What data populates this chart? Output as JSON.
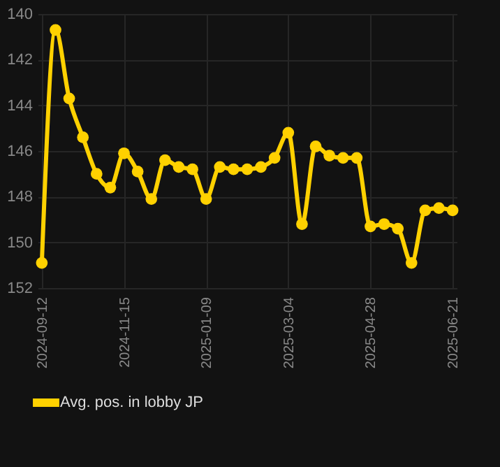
{
  "chart_data": {
    "type": "line",
    "categories": [
      "2024-09-12",
      null,
      null,
      null,
      null,
      null,
      "2024-11-15",
      null,
      null,
      null,
      null,
      null,
      "2025-01-09",
      null,
      null,
      null,
      null,
      null,
      "2025-03-04",
      null,
      null,
      null,
      null,
      null,
      "2025-04-28",
      null,
      null,
      null,
      null,
      null,
      "2025-06-21"
    ],
    "series": [
      {
        "name": "Avg. pos. in lobby JP",
        "color": "#ffd100",
        "values": [
          150.9,
          140.7,
          143.7,
          145.4,
          147.0,
          147.6,
          146.1,
          146.9,
          148.1,
          146.4,
          146.7,
          146.8,
          148.1,
          146.7,
          146.8,
          146.8,
          146.7,
          146.3,
          145.2,
          149.2,
          145.8,
          146.2,
          146.3,
          146.3,
          149.3,
          149.2,
          149.4,
          150.9,
          148.6,
          148.5,
          148.6
        ]
      }
    ],
    "ylim": [
      152,
      140
    ],
    "yticks": [
      140,
      142,
      144,
      146,
      148,
      150,
      152
    ],
    "grid": true,
    "legend": "bottom",
    "marker": "circle",
    "line_style": "solid"
  }
}
